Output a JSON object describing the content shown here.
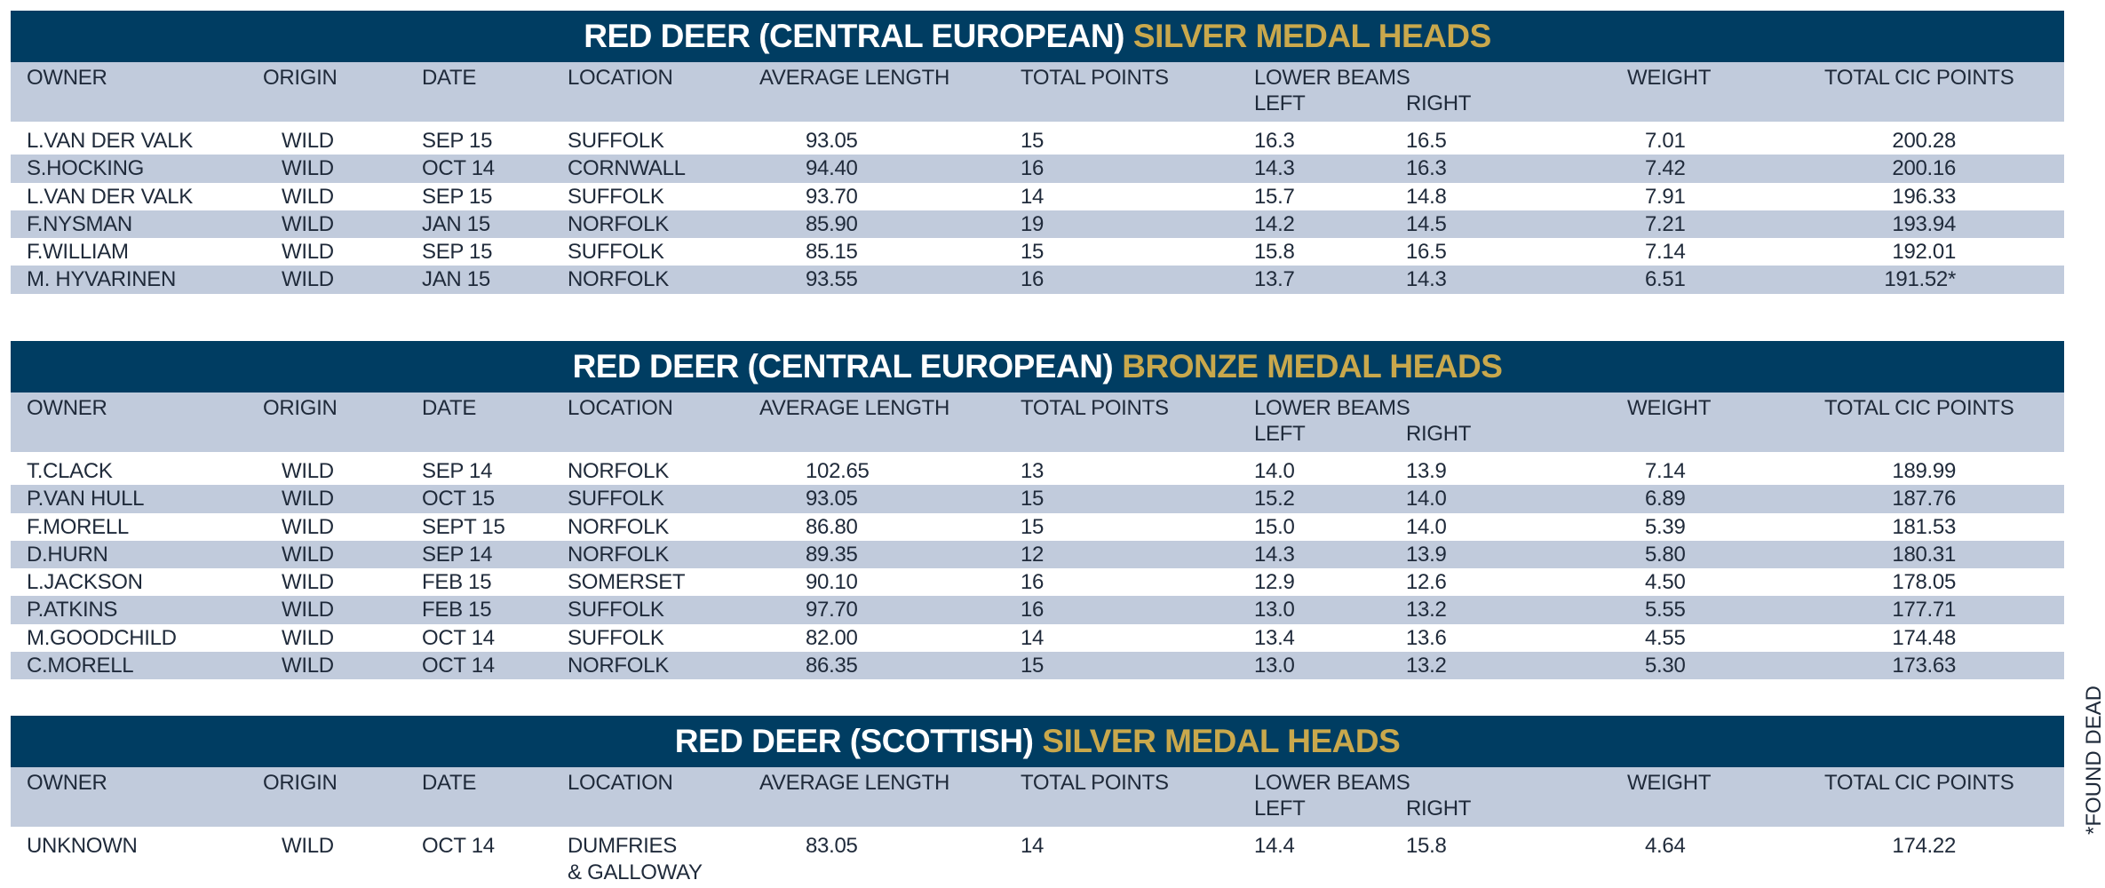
{
  "headers": {
    "owner": "OWNER",
    "origin": "ORIGIN",
    "date": "DATE",
    "location": "LOCATION",
    "average_length": "AVERAGE LENGTH",
    "total_points": "TOTAL POINTS",
    "lower_beams": "LOWER BEAMS",
    "left": "LEFT",
    "right": "RIGHT",
    "weight": "WEIGHT",
    "total_cic": "TOTAL CIC POINTS"
  },
  "footnote": "*FOUND DEAD",
  "colors": {
    "title_bg": "#003d62",
    "accent": "#c9a84c",
    "row_shade": "#c1cbdc"
  },
  "sections": [
    {
      "title_main": "RED DEER (CENTRAL EUROPEAN)",
      "title_accent": "SILVER MEDAL HEADS",
      "rows": [
        {
          "owner": "L.VAN DER VALK",
          "origin": "WILD",
          "date": "SEP 15",
          "location": "SUFFOLK",
          "avg": "93.05",
          "points": "15",
          "left": "16.3",
          "right": "16.5",
          "weight": "7.01",
          "cic": "200.28"
        },
        {
          "owner": "S.HOCKING",
          "origin": "WILD",
          "date": "OCT 14",
          "location": "CORNWALL",
          "avg": "94.40",
          "points": "16",
          "left": "14.3",
          "right": "16.3",
          "weight": "7.42",
          "cic": "200.16"
        },
        {
          "owner": "L.VAN DER VALK",
          "origin": "WILD",
          "date": "SEP 15",
          "location": "SUFFOLK",
          "avg": "93.70",
          "points": "14",
          "left": "15.7",
          "right": "14.8",
          "weight": "7.91",
          "cic": "196.33"
        },
        {
          "owner": "F.NYSMAN",
          "origin": "WILD",
          "date": "JAN 15",
          "location": "NORFOLK",
          "avg": "85.90",
          "points": "19",
          "left": "14.2",
          "right": "14.5",
          "weight": "7.21",
          "cic": "193.94"
        },
        {
          "owner": "F.WILLIAM",
          "origin": "WILD",
          "date": "SEP 15",
          "location": "SUFFOLK",
          "avg": "85.15",
          "points": "15",
          "left": "15.8",
          "right": "16.5",
          "weight": "7.14",
          "cic": "192.01"
        },
        {
          "owner": "M. HYVARINEN",
          "origin": "WILD",
          "date": "JAN 15",
          "location": "NORFOLK",
          "avg": "93.55",
          "points": "16",
          "left": "13.7",
          "right": "14.3",
          "weight": "6.51",
          "cic": "191.52*"
        }
      ]
    },
    {
      "title_main": "RED DEER (CENTRAL EUROPEAN)",
      "title_accent": "BRONZE MEDAL HEADS",
      "rows": [
        {
          "owner": "T.CLACK",
          "origin": "WILD",
          "date": "SEP 14",
          "location": "NORFOLK",
          "avg": "102.65",
          "points": "13",
          "left": "14.0",
          "right": "13.9",
          "weight": "7.14",
          "cic": "189.99"
        },
        {
          "owner": "P.VAN HULL",
          "origin": "WILD",
          "date": "OCT 15",
          "location": "SUFFOLK",
          "avg": "93.05",
          "points": "15",
          "left": "15.2",
          "right": "14.0",
          "weight": "6.89",
          "cic": "187.76"
        },
        {
          "owner": "F.MORELL",
          "origin": "WILD",
          "date": "SEPT 15",
          "location": "NORFOLK",
          "avg": "86.80",
          "points": "15",
          "left": "15.0",
          "right": "14.0",
          "weight": "5.39",
          "cic": "181.53"
        },
        {
          "owner": "D.HURN",
          "origin": "WILD",
          "date": "SEP 14",
          "location": "NORFOLK",
          "avg": "89.35",
          "points": "12",
          "left": "14.3",
          "right": "13.9",
          "weight": "5.80",
          "cic": "180.31"
        },
        {
          "owner": "L.JACKSON",
          "origin": "WILD",
          "date": "FEB 15",
          "location": "SOMERSET",
          "avg": "90.10",
          "points": "16",
          "left": "12.9",
          "right": "12.6",
          "weight": "4.50",
          "cic": "178.05"
        },
        {
          "owner": "P.ATKINS",
          "origin": "WILD",
          "date": "FEB 15",
          "location": "SUFFOLK",
          "avg": "97.70",
          "points": "16",
          "left": "13.0",
          "right": "13.2",
          "weight": "5.55",
          "cic": "177.71"
        },
        {
          "owner": "M.GOODCHILD",
          "origin": "WILD",
          "date": "OCT 14",
          "location": "SUFFOLK",
          "avg": "82.00",
          "points": "14",
          "left": "13.4",
          "right": "13.6",
          "weight": "4.55",
          "cic": "174.48"
        },
        {
          "owner": "C.MORELL",
          "origin": "WILD",
          "date": "OCT 14",
          "location": "NORFOLK",
          "avg": "86.35",
          "points": "15",
          "left": "13.0",
          "right": "13.2",
          "weight": "5.30",
          "cic": "173.63"
        }
      ]
    },
    {
      "title_main": "RED DEER (SCOTTISH)",
      "title_accent": "SILVER MEDAL HEADS",
      "rows": [
        {
          "owner": "UNKNOWN",
          "origin": "WILD",
          "date": "OCT 14",
          "location": "DUMFRIES",
          "location_line2": "& GALLOWAY",
          "avg": "83.05",
          "points": "14",
          "left": "14.4",
          "right": "15.8",
          "weight": "4.64",
          "cic": "174.22"
        }
      ]
    }
  ]
}
